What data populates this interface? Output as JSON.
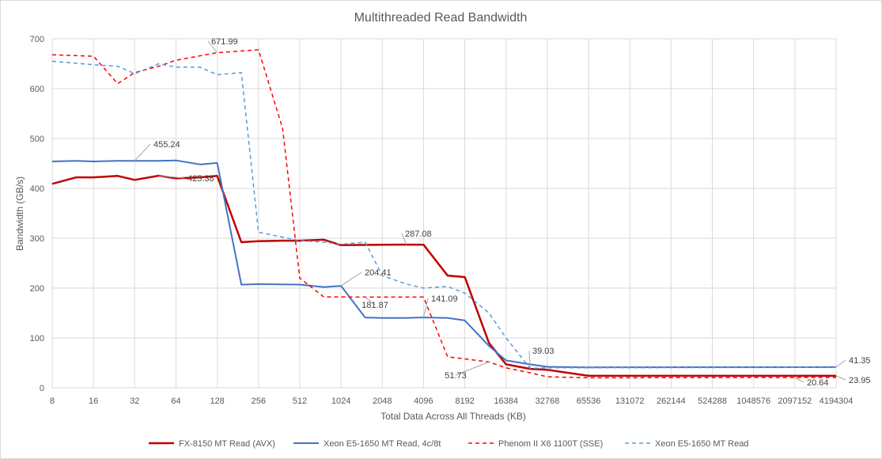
{
  "chart_data": {
    "type": "line",
    "title": "Multithreaded Read Bandwidth",
    "xlabel": "Total Data Across All Threads (KB)",
    "ylabel": "Bandwidth (GB/s)",
    "x_ticks": [
      "8",
      "16",
      "32",
      "64",
      "128",
      "256",
      "512",
      "1024",
      "2048",
      "4096",
      "8192",
      "16384",
      "32768",
      "65536",
      "131072",
      "262144",
      "524288",
      "1048576",
      "2097152",
      "4194304"
    ],
    "y_ticks": [
      "0",
      "100",
      "200",
      "300",
      "400",
      "500",
      "600",
      "700"
    ],
    "ylim": [
      0,
      700
    ],
    "x_scale": "log2",
    "grid": true,
    "legend_position": "bottom",
    "colors": {
      "red": "#c00000",
      "blue": "#4472c4",
      "red_dash": "#ff0000",
      "blue_dash": "#5b9bd5"
    },
    "series": [
      {
        "name": "FX-8150 MT Read (AVX)",
        "style": "solid-thick",
        "color": "#c00000",
        "points": [
          [
            8,
            409
          ],
          [
            12,
            422
          ],
          [
            16,
            422
          ],
          [
            24,
            425
          ],
          [
            32,
            417
          ],
          [
            48,
            425.38
          ],
          [
            64,
            420
          ],
          [
            96,
            422
          ],
          [
            128,
            425
          ],
          [
            192,
            292
          ],
          [
            256,
            294
          ],
          [
            384,
            295
          ],
          [
            512,
            295
          ],
          [
            768,
            297
          ],
          [
            1024,
            286
          ],
          [
            2048,
            287
          ],
          [
            3072,
            287.08
          ],
          [
            4096,
            287
          ],
          [
            6144,
            225
          ],
          [
            8192,
            222
          ],
          [
            12288,
            90
          ],
          [
            16384,
            47
          ],
          [
            24576,
            38
          ],
          [
            32768,
            36
          ],
          [
            65536,
            24
          ],
          [
            4194304,
            23.95
          ]
        ]
      },
      {
        "name": "Xeon E5-1650 MT Read, 4c/8t",
        "style": "solid",
        "color": "#4472c4",
        "points": [
          [
            8,
            454
          ],
          [
            12,
            455
          ],
          [
            16,
            454
          ],
          [
            24,
            455
          ],
          [
            32,
            455.24
          ],
          [
            48,
            455
          ],
          [
            64,
            456
          ],
          [
            96,
            448
          ],
          [
            128,
            451
          ],
          [
            192,
            207
          ],
          [
            256,
            208
          ],
          [
            512,
            207
          ],
          [
            768,
            202
          ],
          [
            1024,
            204.41
          ],
          [
            1536,
            141
          ],
          [
            2048,
            140
          ],
          [
            3072,
            140
          ],
          [
            4096,
            141.09
          ],
          [
            6144,
            140
          ],
          [
            8192,
            135
          ],
          [
            12288,
            84
          ],
          [
            16384,
            55
          ],
          [
            24576,
            47
          ],
          [
            32768,
            42
          ],
          [
            65536,
            41
          ],
          [
            4194304,
            41.35
          ]
        ]
      },
      {
        "name": "Phenom II X6 1100T (SSE)",
        "style": "dashed",
        "color": "#ff0000",
        "points": [
          [
            8,
            668
          ],
          [
            16,
            665
          ],
          [
            24,
            610
          ],
          [
            32,
            632
          ],
          [
            48,
            645
          ],
          [
            64,
            657
          ],
          [
            128,
            671.99
          ],
          [
            256,
            678
          ],
          [
            384,
            520
          ],
          [
            512,
            220
          ],
          [
            768,
            182
          ],
          [
            1024,
            182
          ],
          [
            4096,
            181.87
          ],
          [
            6144,
            62
          ],
          [
            8192,
            58
          ],
          [
            12288,
            51.73
          ],
          [
            16384,
            40
          ],
          [
            24576,
            30
          ],
          [
            32768,
            22
          ],
          [
            65536,
            20
          ],
          [
            4194304,
            20.64
          ]
        ]
      },
      {
        "name": "Xeon E5-1650 MT Read",
        "style": "dashed",
        "color": "#5b9bd5",
        "points": [
          [
            8,
            655
          ],
          [
            16,
            648
          ],
          [
            24,
            645
          ],
          [
            32,
            630
          ],
          [
            48,
            650
          ],
          [
            64,
            643
          ],
          [
            96,
            643
          ],
          [
            128,
            628
          ],
          [
            192,
            632
          ],
          [
            256,
            312
          ],
          [
            512,
            295
          ],
          [
            768,
            292
          ],
          [
            1024,
            288
          ],
          [
            1536,
            292
          ],
          [
            2048,
            225
          ],
          [
            3072,
            208
          ],
          [
            4096,
            200
          ],
          [
            6144,
            203
          ],
          [
            8192,
            190
          ],
          [
            12288,
            150
          ],
          [
            16384,
            100
          ],
          [
            24576,
            39.03
          ],
          [
            32768,
            40
          ],
          [
            4194304,
            41
          ]
        ]
      }
    ],
    "annotations": [
      "671.99",
      "455.24",
      "425.38",
      "287.08",
      "204.41",
      "181.87",
      "141.09",
      "51.73",
      "39.03",
      "41.35",
      "23.95",
      "20.64"
    ]
  }
}
